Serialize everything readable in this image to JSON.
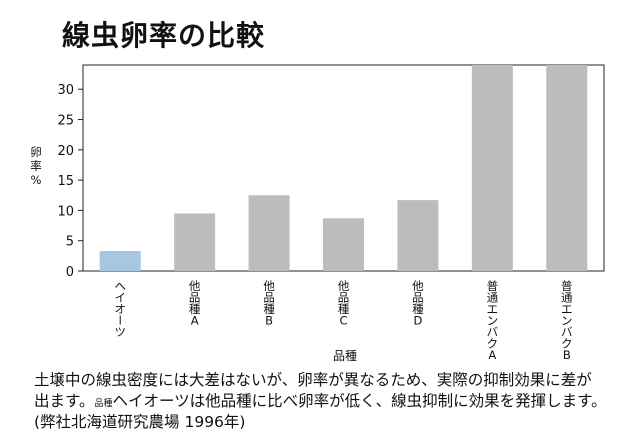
{
  "chart_data": {
    "type": "bar",
    "title": "線虫卵率の比較",
    "ylabel": "卵率%",
    "xlabel": "品種",
    "categories": [
      "ヘイオーツ",
      "他品種A",
      "他品種B",
      "他品種C",
      "他品種D",
      "普通エンバクA",
      "普通エンバクB"
    ],
    "values": [
      3.3,
      9.5,
      12.5,
      8.7,
      11.7,
      34,
      34
    ],
    "colors": [
      "#a6c6e2",
      "#bcbcbc",
      "#bcbcbc",
      "#bcbcbc",
      "#bcbcbc",
      "#bcbcbc",
      "#bcbcbc"
    ],
    "ylim": [
      0,
      34
    ],
    "yticks": [
      0,
      5,
      10,
      15,
      20,
      25,
      30
    ],
    "grid": false,
    "legend": "none"
  },
  "caption": {
    "line1": "土壌中の線虫密度には大差はないが、卵率が異なるため、実際の抑制効果に差が",
    "line2_start": "出ます。",
    "line2_small": "品種",
    "line2_end": "ヘイオーツは他品種に比べ卵率が低く、線虫抑制に効果を発揮します。",
    "line3": "(弊社北海道研究農場 1996年)"
  }
}
